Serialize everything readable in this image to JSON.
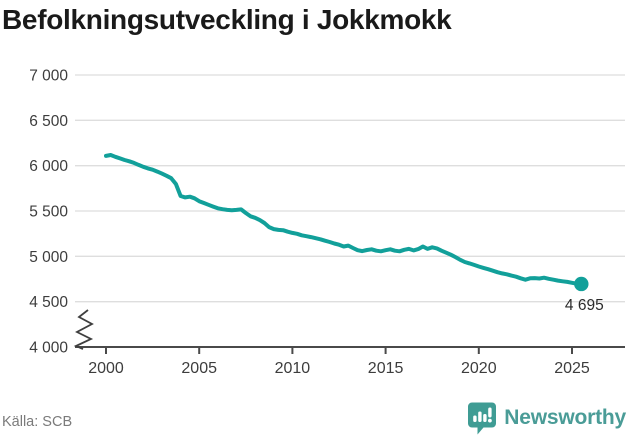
{
  "header": {
    "title": "Befolkningsutveckling i Jokkmokk"
  },
  "footer": {
    "source": "Källa: SCB",
    "brand": "Newsworthy"
  },
  "colors": {
    "line": "#12A09A",
    "grid": "#DEDEDE",
    "axis": "#4A4A4A",
    "tick_text": "#3D3D3D",
    "end_label_text": "#2B2B2B",
    "source_text": "#7B7B7B",
    "brand": "#4A9C97"
  },
  "chart_data": {
    "type": "line",
    "title": "Befolkningsutveckling i Jokkmokk",
    "xlabel": "",
    "ylabel": "",
    "grid": "horizontal",
    "legend": "none",
    "axis_break": true,
    "ylim": [
      4000,
      7000
    ],
    "xlim": [
      2000,
      2025.5
    ],
    "y_ticks": [
      4000,
      4500,
      5000,
      5500,
      6000,
      6500,
      7000
    ],
    "y_tick_labels": [
      "4 000",
      "4 500",
      "5 000",
      "5 500",
      "6 000",
      "6 500",
      "7 000"
    ],
    "x_ticks": [
      2000,
      2005,
      2010,
      2015,
      2020,
      2025
    ],
    "x_tick_labels": [
      "2000",
      "2005",
      "2010",
      "2015",
      "2020",
      "2025"
    ],
    "end_label": "4 695",
    "end_value": 4695,
    "series_name": "Befolkning i Jokkmokk",
    "x": [
      2000.0,
      2000.25,
      2000.5,
      2000.75,
      2001.0,
      2001.25,
      2001.5,
      2001.75,
      2002.0,
      2002.25,
      2002.5,
      2002.75,
      2003.0,
      2003.25,
      2003.5,
      2003.75,
      2004.0,
      2004.25,
      2004.5,
      2004.75,
      2005.0,
      2005.25,
      2005.5,
      2005.75,
      2006.0,
      2006.25,
      2006.5,
      2006.75,
      2007.0,
      2007.25,
      2007.5,
      2007.75,
      2008.0,
      2008.25,
      2008.5,
      2008.75,
      2009.0,
      2009.25,
      2009.5,
      2009.75,
      2010.0,
      2010.25,
      2010.5,
      2010.75,
      2011.0,
      2011.25,
      2011.5,
      2011.75,
      2012.0,
      2012.25,
      2012.5,
      2012.75,
      2013.0,
      2013.25,
      2013.5,
      2013.75,
      2014.0,
      2014.25,
      2014.5,
      2014.75,
      2015.0,
      2015.25,
      2015.5,
      2015.75,
      2016.0,
      2016.25,
      2016.5,
      2016.75,
      2017.0,
      2017.25,
      2017.5,
      2017.75,
      2018.0,
      2018.25,
      2018.5,
      2018.75,
      2019.0,
      2019.25,
      2019.5,
      2019.75,
      2020.0,
      2020.25,
      2020.5,
      2020.75,
      2021.0,
      2021.25,
      2021.5,
      2021.75,
      2022.0,
      2022.25,
      2022.5,
      2022.75,
      2023.0,
      2023.25,
      2023.5,
      2023.75,
      2024.0,
      2024.25,
      2024.5,
      2024.75,
      2025.0,
      2025.25,
      2025.5
    ],
    "y": [
      6108,
      6118,
      6098,
      6080,
      6062,
      6048,
      6030,
      6008,
      5988,
      5970,
      5955,
      5935,
      5912,
      5888,
      5862,
      5798,
      5665,
      5650,
      5658,
      5640,
      5608,
      5588,
      5568,
      5548,
      5530,
      5520,
      5512,
      5508,
      5512,
      5518,
      5478,
      5442,
      5425,
      5400,
      5368,
      5322,
      5300,
      5292,
      5288,
      5272,
      5258,
      5248,
      5232,
      5222,
      5212,
      5200,
      5188,
      5172,
      5158,
      5142,
      5128,
      5108,
      5118,
      5092,
      5068,
      5058,
      5070,
      5078,
      5062,
      5055,
      5068,
      5078,
      5062,
      5055,
      5072,
      5082,
      5065,
      5080,
      5108,
      5082,
      5100,
      5088,
      5062,
      5040,
      5018,
      4992,
      4962,
      4938,
      4922,
      4905,
      4888,
      4872,
      4858,
      4842,
      4825,
      4812,
      4802,
      4788,
      4775,
      4758,
      4742,
      4758,
      4760,
      4755,
      4764,
      4752,
      4742,
      4732,
      4725,
      4718,
      4708,
      4698,
      4695
    ]
  }
}
